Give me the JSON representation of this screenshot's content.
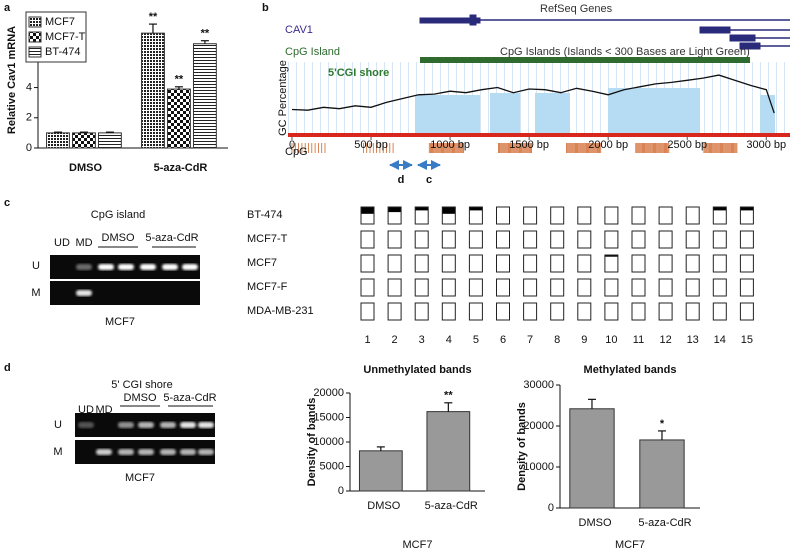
{
  "panel_labels": [
    "a",
    "b",
    "c",
    "d"
  ],
  "chart_data": [
    {
      "type": "bar",
      "ylabel": "Relative Cav1 mRNA",
      "categories": [
        "DMSO",
        "5-aza-CdR"
      ],
      "ylim": [
        0,
        9
      ],
      "yticks": [
        0,
        2,
        4,
        6,
        8
      ],
      "legend": "upper left",
      "series": [
        {
          "name": "MCF7",
          "pattern": "dots",
          "values": [
            1.0,
            7.6
          ],
          "errors": [
            0.05,
            0.6
          ],
          "annotations": [
            null,
            "**"
          ]
        },
        {
          "name": "MCF7-T",
          "pattern": "checker",
          "values": [
            1.0,
            3.9
          ],
          "errors": [
            0.05,
            0.15
          ],
          "annotations": [
            null,
            "**"
          ]
        },
        {
          "name": "BT-474",
          "pattern": "lines",
          "values": [
            1.0,
            6.9
          ],
          "errors": [
            0.05,
            0.2
          ],
          "annotations": [
            null,
            "**"
          ]
        }
      ]
    },
    {
      "type": "line",
      "ylabel": "GC Percentage",
      "xlim": [
        0,
        3150
      ],
      "xticks": [
        0,
        {
          "value": 500,
          "label": "500 bp"
        },
        {
          "value": 1000,
          "label": "1000 bp"
        },
        {
          "value": 1500,
          "label": "1500 bp"
        },
        {
          "value": 2000,
          "label": "2000 bp"
        },
        {
          "value": 2500,
          "label": "2500 bp"
        },
        {
          "value": 3000,
          "label": "3000 bp"
        }
      ],
      "ylim": [
        0,
        100
      ],
      "color": "#111111",
      "x": [
        0,
        100,
        200,
        300,
        400,
        500,
        600,
        700,
        800,
        900,
        1000,
        1100,
        1200,
        1300,
        1400,
        1500,
        1600,
        1700,
        1800,
        1900,
        2000,
        2100,
        2200,
        2300,
        2400,
        2500,
        2600,
        2700,
        2800,
        2900,
        3000,
        3050
      ],
      "values": [
        35,
        34,
        38,
        36,
        40,
        38,
        45,
        50,
        55,
        56,
        60,
        58,
        62,
        65,
        58,
        63,
        62,
        58,
        64,
        60,
        55,
        62,
        66,
        70,
        72,
        75,
        78,
        82,
        75,
        68,
        62,
        30
      ]
    },
    {
      "type": "bar",
      "title": "Unmethylated bands",
      "ylabel": "Density of bands",
      "xlabel": "MCF7",
      "categories": [
        "DMSO",
        "5-aza-CdR"
      ],
      "values": [
        8200,
        16200
      ],
      "errors": [
        800,
        1800
      ],
      "annotations": [
        null,
        "**"
      ],
      "ylim": [
        0,
        20000
      ],
      "yticks": [
        0,
        5000,
        10000,
        15000,
        20000
      ],
      "color": "#999999"
    },
    {
      "type": "bar",
      "title": "Methylated bands",
      "ylabel": "Density of bands",
      "xlabel": "MCF7",
      "categories": [
        "DMSO",
        "5-aza-CdR"
      ],
      "values": [
        24200,
        16600
      ],
      "errors": [
        2300,
        2200
      ],
      "annotations": [
        null,
        "*"
      ],
      "ylim": [
        0,
        30000
      ],
      "yticks": [
        0,
        10000,
        20000,
        30000
      ],
      "color": "#999999"
    }
  ],
  "genome": {
    "gene": "CAV1",
    "gene_track": "RefSeq Genes",
    "island": "CpG Island",
    "island_track": "CpG Islands (Islands < 300 Bases are Light Green)",
    "shore": "5'CGI shore",
    "cpg": "CpG",
    "primers": [
      "d",
      "c"
    ]
  },
  "gel_c": {
    "title": "CpG island",
    "lanes": [
      "UD",
      "MD"
    ],
    "groups": [
      "DMSO",
      "5-aza-CdR"
    ],
    "rows": [
      "U",
      "M"
    ],
    "caption": "MCF7"
  },
  "methylation": {
    "rows": [
      "BT-474",
      "MCF7-T",
      "MCF7",
      "MCF7-F",
      "MDA-MB-231"
    ],
    "columns": [
      1,
      2,
      3,
      4,
      5,
      6,
      7,
      8,
      9,
      10,
      11,
      12,
      13,
      14,
      15
    ],
    "values": [
      [
        0.4,
        0.3,
        0.2,
        0.4,
        0.2,
        0,
        0,
        0,
        0,
        0,
        0,
        0,
        0,
        0.2,
        0.2
      ],
      [
        0,
        0,
        0,
        0,
        0,
        0,
        0,
        0,
        0,
        0,
        0,
        0,
        0,
        0,
        0
      ],
      [
        0,
        0,
        0,
        0,
        0,
        0,
        0,
        0,
        0,
        0.1,
        0,
        0,
        0,
        0,
        0
      ],
      [
        0,
        0,
        0,
        0,
        0,
        0,
        0,
        0,
        0,
        0,
        0,
        0,
        0,
        0,
        0
      ],
      [
        0,
        0,
        0,
        0,
        0,
        0,
        0,
        0,
        0,
        0,
        0,
        0,
        0,
        0,
        0
      ]
    ]
  },
  "gel_d": {
    "title": "5' CGI shore",
    "lanes": [
      "UD",
      "MD"
    ],
    "groups": [
      "DMSO",
      "5-aza-CdR"
    ],
    "rows": [
      "U",
      "M"
    ],
    "caption": "MCF7"
  }
}
